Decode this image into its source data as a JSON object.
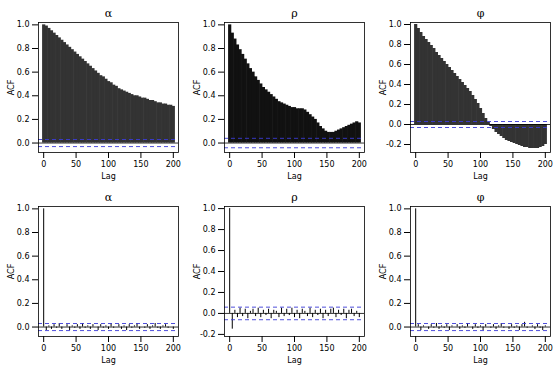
{
  "chart_data": [
    {
      "type": "bar",
      "title": "α",
      "xlabel": "Lag",
      "ylabel": "ACF",
      "color": "#333333",
      "x": [
        0,
        4,
        8,
        12,
        16,
        20,
        24,
        28,
        32,
        36,
        40,
        44,
        48,
        52,
        56,
        60,
        64,
        68,
        72,
        76,
        80,
        84,
        88,
        92,
        96,
        100,
        104,
        108,
        112,
        116,
        120,
        124,
        128,
        132,
        136,
        140,
        144,
        148,
        152,
        156,
        160,
        164,
        168,
        172,
        176,
        180,
        184,
        188,
        192,
        196,
        200
      ],
      "values": [
        1.0,
        0.99,
        0.97,
        0.95,
        0.93,
        0.91,
        0.89,
        0.87,
        0.85,
        0.83,
        0.81,
        0.79,
        0.77,
        0.75,
        0.73,
        0.71,
        0.69,
        0.67,
        0.65,
        0.63,
        0.61,
        0.59,
        0.57,
        0.56,
        0.54,
        0.52,
        0.51,
        0.49,
        0.48,
        0.46,
        0.45,
        0.44,
        0.43,
        0.42,
        0.41,
        0.4,
        0.4,
        0.39,
        0.38,
        0.38,
        0.37,
        0.36,
        0.36,
        0.35,
        0.34,
        0.34,
        0.33,
        0.33,
        0.32,
        0.32,
        0.31
      ],
      "confidence_band": 0.03,
      "xlim": [
        -8,
        208
      ],
      "xticks": [
        0,
        50,
        100,
        150,
        200
      ],
      "ylim": [
        -0.08,
        1.02
      ],
      "yticks": [
        {
          "value": 0,
          "label": "0.0"
        },
        {
          "value": 0.2,
          "label": "0.2"
        },
        {
          "value": 0.4,
          "label": "0.4"
        },
        {
          "value": 0.6,
          "label": "0.6"
        },
        {
          "value": 0.8,
          "label": "0.8"
        },
        {
          "value": 1,
          "label": "1.0"
        }
      ]
    },
    {
      "type": "bar",
      "title": "ρ",
      "xlabel": "Lag",
      "ylabel": "ACF",
      "color": "#111111",
      "x": [
        0,
        4,
        8,
        12,
        16,
        20,
        24,
        28,
        32,
        36,
        40,
        44,
        48,
        52,
        56,
        60,
        64,
        68,
        72,
        76,
        80,
        84,
        88,
        92,
        96,
        100,
        104,
        108,
        112,
        116,
        120,
        124,
        128,
        132,
        136,
        140,
        144,
        148,
        152,
        156,
        160,
        164,
        168,
        172,
        176,
        180,
        184,
        188,
        192,
        196,
        200
      ],
      "values": [
        1.0,
        0.93,
        0.88,
        0.83,
        0.79,
        0.75,
        0.71,
        0.67,
        0.63,
        0.6,
        0.56,
        0.53,
        0.5,
        0.47,
        0.45,
        0.43,
        0.41,
        0.39,
        0.37,
        0.35,
        0.34,
        0.33,
        0.32,
        0.31,
        0.3,
        0.3,
        0.29,
        0.29,
        0.29,
        0.28,
        0.26,
        0.24,
        0.22,
        0.2,
        0.17,
        0.14,
        0.12,
        0.1,
        0.09,
        0.09,
        0.09,
        0.1,
        0.11,
        0.12,
        0.13,
        0.14,
        0.15,
        0.16,
        0.17,
        0.18,
        0.17
      ],
      "confidence_band": 0.04,
      "xlim": [
        -8,
        208
      ],
      "xticks": [
        0,
        50,
        100,
        150,
        200
      ],
      "ylim": [
        -0.08,
        1.02
      ],
      "yticks": [
        {
          "value": 0,
          "label": "0.0"
        },
        {
          "value": 0.2,
          "label": "0.2"
        },
        {
          "value": 0.4,
          "label": "0.4"
        },
        {
          "value": 0.6,
          "label": "0.6"
        },
        {
          "value": 0.8,
          "label": "0.8"
        },
        {
          "value": 1,
          "label": "1.0"
        }
      ]
    },
    {
      "type": "bar",
      "title": "φ",
      "xlabel": "Lag",
      "ylabel": "ACF",
      "color": "#333333",
      "x": [
        0,
        4,
        8,
        12,
        16,
        20,
        24,
        28,
        32,
        36,
        40,
        44,
        48,
        52,
        56,
        60,
        64,
        68,
        72,
        76,
        80,
        84,
        88,
        92,
        96,
        100,
        104,
        108,
        112,
        116,
        120,
        124,
        128,
        132,
        136,
        140,
        144,
        148,
        152,
        156,
        160,
        164,
        168,
        172,
        176,
        180,
        184,
        188,
        192,
        196,
        200
      ],
      "values": [
        1.0,
        0.96,
        0.92,
        0.88,
        0.85,
        0.82,
        0.79,
        0.76,
        0.72,
        0.69,
        0.66,
        0.63,
        0.6,
        0.57,
        0.54,
        0.51,
        0.48,
        0.45,
        0.42,
        0.39,
        0.36,
        0.33,
        0.29,
        0.25,
        0.21,
        0.16,
        0.11,
        0.06,
        0.02,
        -0.02,
        -0.05,
        -0.08,
        -0.1,
        -0.12,
        -0.14,
        -0.16,
        -0.17,
        -0.18,
        -0.19,
        -0.2,
        -0.21,
        -0.22,
        -0.23,
        -0.23,
        -0.24,
        -0.24,
        -0.24,
        -0.24,
        -0.23,
        -0.22,
        -0.2
      ],
      "confidence_band": 0.03,
      "xlim": [
        -8,
        208
      ],
      "xticks": [
        0,
        50,
        100,
        150,
        200
      ],
      "ylim": [
        -0.28,
        1.02
      ],
      "yticks": [
        {
          "value": -0.2,
          "label": "-0.2"
        },
        {
          "value": 0,
          "label": "0.0"
        },
        {
          "value": 0.2,
          "label": "0.2"
        },
        {
          "value": 0.4,
          "label": "0.4"
        },
        {
          "value": 0.6,
          "label": "0.6"
        },
        {
          "value": 0.8,
          "label": "0.8"
        },
        {
          "value": 1,
          "label": "1.0"
        }
      ]
    },
    {
      "type": "bar",
      "title": "α",
      "xlabel": "Lag",
      "ylabel": "ACF",
      "color": "#000000",
      "x": [
        0,
        4,
        8,
        12,
        16,
        20,
        24,
        28,
        32,
        36,
        40,
        44,
        48,
        52,
        56,
        60,
        64,
        68,
        72,
        76,
        80,
        84,
        88,
        92,
        96,
        100,
        104,
        108,
        112,
        116,
        120,
        124,
        128,
        132,
        136,
        140,
        144,
        148,
        152,
        156,
        160,
        164,
        168,
        172,
        176,
        180,
        184,
        188,
        192,
        196,
        200
      ],
      "values": [
        1.0,
        -0.03,
        0.01,
        -0.02,
        0.02,
        -0.01,
        0.03,
        -0.02,
        0.0,
        0.02,
        -0.03,
        0.01,
        -0.01,
        0.02,
        -0.02,
        0.03,
        -0.01,
        0.01,
        -0.02,
        0.02,
        0.0,
        -0.03,
        0.02,
        -0.01,
        0.01,
        -0.02,
        0.03,
        -0.01,
        0.0,
        0.02,
        -0.02,
        0.01,
        -0.03,
        0.02,
        -0.01,
        0.01,
        0.03,
        -0.02,
        0.0,
        -0.01,
        0.02,
        -0.02,
        0.01,
        0.03,
        -0.01,
        -0.02,
        0.01,
        0.02,
        -0.01,
        0.0,
        -0.02
      ],
      "confidence_band": 0.03,
      "xlim": [
        -8,
        208
      ],
      "xticks": [
        0,
        50,
        100,
        150,
        200
      ],
      "ylim": [
        -0.08,
        1.02
      ],
      "yticks": [
        {
          "value": 0,
          "label": "0.0"
        },
        {
          "value": 0.2,
          "label": "0.2"
        },
        {
          "value": 0.4,
          "label": "0.4"
        },
        {
          "value": 0.6,
          "label": "0.6"
        },
        {
          "value": 0.8,
          "label": "0.8"
        },
        {
          "value": 1,
          "label": "1.0"
        }
      ]
    },
    {
      "type": "bar",
      "title": "ρ",
      "xlabel": "Lag",
      "ylabel": "ACF",
      "color": "#000000",
      "x": [
        0,
        4,
        8,
        12,
        16,
        20,
        24,
        28,
        32,
        36,
        40,
        44,
        48,
        52,
        56,
        60,
        64,
        68,
        72,
        76,
        80,
        84,
        88,
        92,
        96,
        100,
        104,
        108,
        112,
        116,
        120,
        124,
        128,
        132,
        136,
        140,
        144,
        148,
        152,
        156,
        160,
        164,
        168,
        172,
        176,
        180,
        184,
        188,
        192,
        196,
        200
      ],
      "values": [
        1.0,
        -0.15,
        0.03,
        -0.04,
        0.05,
        -0.03,
        0.04,
        -0.05,
        0.02,
        0.04,
        -0.03,
        0.05,
        -0.04,
        0.03,
        -0.02,
        0.04,
        -0.05,
        0.03,
        0.02,
        -0.04,
        0.05,
        -0.03,
        0.04,
        -0.02,
        0.05,
        -0.04,
        0.03,
        -0.05,
        0.04,
        0.02,
        -0.03,
        0.05,
        -0.04,
        0.03,
        -0.02,
        0.04,
        -0.05,
        0.03,
        -0.03,
        0.04,
        0.05,
        -0.04,
        0.03,
        -0.02,
        0.04,
        -0.05,
        0.03,
        0.04,
        -0.03,
        0.02,
        -0.04
      ],
      "confidence_band": 0.06,
      "xlim": [
        -8,
        208
      ],
      "xticks": [
        0,
        50,
        100,
        150,
        200
      ],
      "ylim": [
        -0.22,
        1.02
      ],
      "yticks": [
        {
          "value": -0.2,
          "label": "-0.2"
        },
        {
          "value": 0,
          "label": "0.0"
        },
        {
          "value": 0.2,
          "label": "0.2"
        },
        {
          "value": 0.4,
          "label": "0.4"
        },
        {
          "value": 0.6,
          "label": "0.6"
        },
        {
          "value": 0.8,
          "label": "0.8"
        },
        {
          "value": 1,
          "label": "1.0"
        }
      ]
    },
    {
      "type": "bar",
      "title": "φ",
      "xlabel": "Lag",
      "ylabel": "ACF",
      "color": "#000000",
      "x": [
        0,
        4,
        8,
        12,
        16,
        20,
        24,
        28,
        32,
        36,
        40,
        44,
        48,
        52,
        56,
        60,
        64,
        68,
        72,
        76,
        80,
        84,
        88,
        92,
        96,
        100,
        104,
        108,
        112,
        116,
        120,
        124,
        128,
        132,
        136,
        140,
        144,
        148,
        152,
        156,
        160,
        164,
        168,
        172,
        176,
        180,
        184,
        188,
        192,
        196,
        200
      ],
      "values": [
        1.0,
        0.02,
        -0.03,
        0.01,
        0.0,
        -0.02,
        0.02,
        -0.01,
        0.03,
        -0.02,
        0.01,
        -0.01,
        0.02,
        -0.03,
        0.01,
        0.0,
        0.02,
        -0.02,
        0.01,
        -0.01,
        0.03,
        0.0,
        -0.02,
        0.02,
        -0.01,
        0.01,
        -0.03,
        0.02,
        0.0,
        -0.01,
        0.02,
        -0.02,
        0.01,
        0.03,
        -0.01,
        0.0,
        -0.02,
        0.02,
        -0.01,
        0.01,
        -0.03,
        0.02,
        0.04,
        -0.01,
        0.0,
        0.01,
        -0.02,
        0.02,
        -0.01,
        -0.03,
        0.01
      ],
      "confidence_band": 0.03,
      "xlim": [
        -8,
        208
      ],
      "xticks": [
        0,
        50,
        100,
        150,
        200
      ],
      "ylim": [
        -0.08,
        1.02
      ],
      "yticks": [
        {
          "value": 0,
          "label": "0.0"
        },
        {
          "value": 0.2,
          "label": "0.2"
        },
        {
          "value": 0.4,
          "label": "0.4"
        },
        {
          "value": 0.6,
          "label": "0.6"
        },
        {
          "value": 0.8,
          "label": "0.8"
        },
        {
          "value": 1,
          "label": "1.0"
        }
      ]
    }
  ]
}
